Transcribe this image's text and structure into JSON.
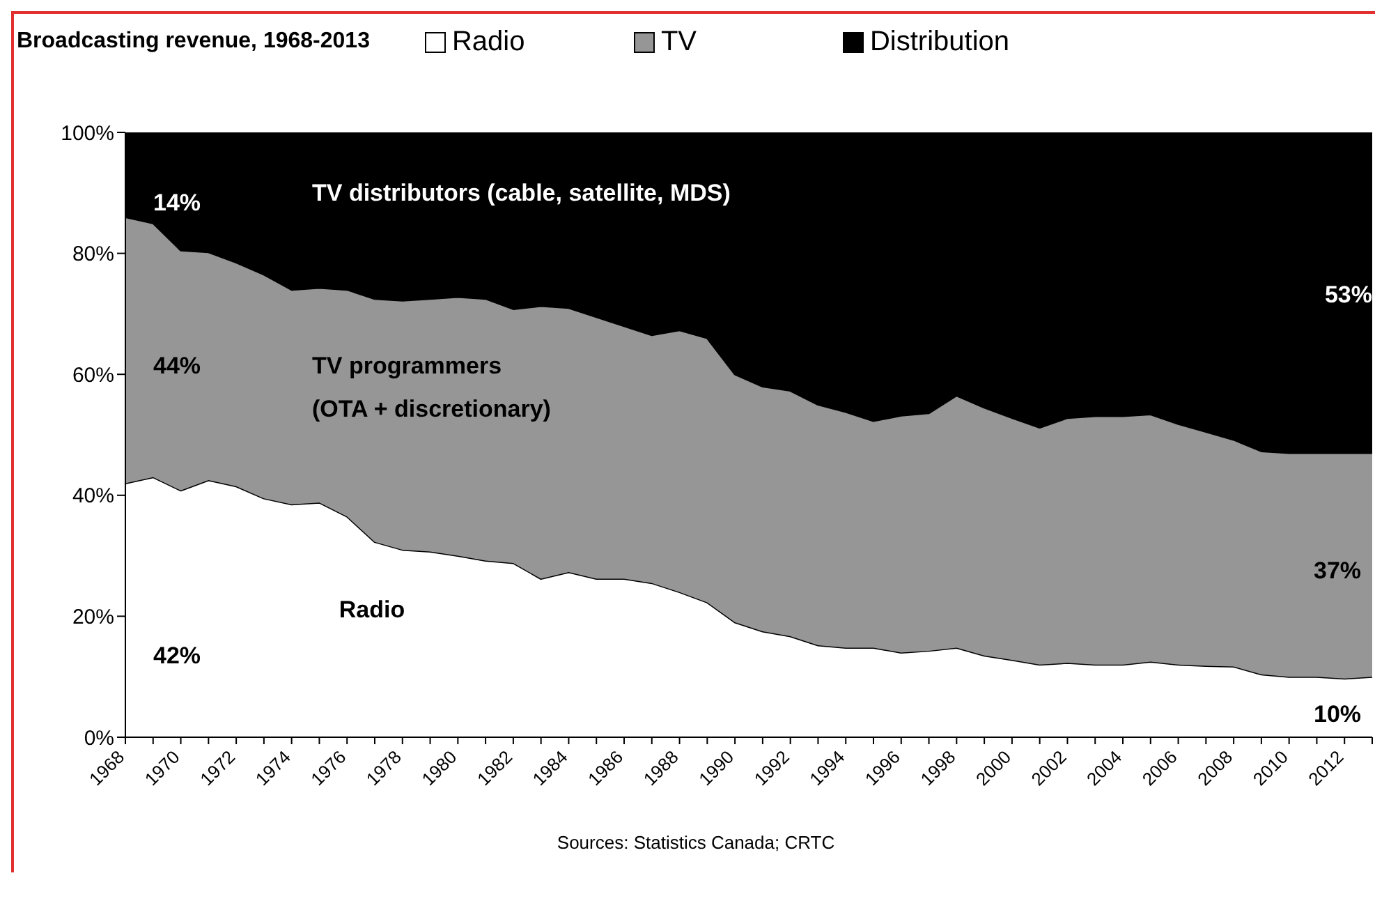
{
  "chart_data": {
    "type": "area",
    "stacked": true,
    "title": "Broadcasting revenue, 1968-2013",
    "x": [
      1968,
      1969,
      1970,
      1971,
      1972,
      1973,
      1974,
      1975,
      1976,
      1977,
      1978,
      1979,
      1980,
      1981,
      1982,
      1983,
      1984,
      1985,
      1986,
      1987,
      1988,
      1989,
      1990,
      1991,
      1992,
      1993,
      1994,
      1995,
      1996,
      1997,
      1998,
      1999,
      2000,
      2001,
      2002,
      2003,
      2004,
      2005,
      2006,
      2007,
      2008,
      2009,
      2010,
      2011,
      2012,
      2013
    ],
    "series": [
      {
        "name": "Radio",
        "color": "#ffffff",
        "values": [
          42,
          43,
          40.8,
          42.5,
          41.5,
          39.5,
          38.5,
          38.8,
          36.5,
          32.3,
          31,
          30.7,
          30,
          29.2,
          28.8,
          26.2,
          27.3,
          26.2,
          26.2,
          25.5,
          24,
          22.3,
          19,
          17.5,
          16.7,
          15.2,
          14.8,
          14.8,
          14,
          14.3,
          14.8,
          13.5,
          12.8,
          12,
          12.3,
          12,
          12,
          12.5,
          12,
          11.8,
          11.7,
          10.4,
          10,
          10,
          9.7,
          10
        ]
      },
      {
        "name": "TV",
        "color": "#969696",
        "values": [
          44,
          42,
          39.7,
          37.7,
          37,
          37,
          35.5,
          35.5,
          37.5,
          40.2,
          41.2,
          41.8,
          42.8,
          43.3,
          42,
          45.1,
          43.7,
          43.3,
          41.8,
          41,
          43.3,
          43.7,
          41,
          40.5,
          40.6,
          39.8,
          39,
          37.5,
          39.2,
          39.3,
          41.7,
          41,
          40,
          39.2,
          40.5,
          41.1,
          41.1,
          40.9,
          39.8,
          38.7,
          37.5,
          36.9,
          37,
          37,
          37.3,
          37
        ]
      },
      {
        "name": "Distribution",
        "color": "#000000",
        "values": [
          14,
          15,
          19.5,
          19.8,
          21.5,
          23.5,
          26,
          25.7,
          26,
          27.5,
          27.8,
          27.5,
          27.2,
          27.5,
          29.2,
          28.7,
          29,
          30.5,
          32,
          33.5,
          32.7,
          34,
          40,
          42,
          42.7,
          45,
          46.2,
          47.7,
          46.8,
          46.4,
          43.5,
          45.5,
          47.2,
          48.8,
          47.2,
          46.9,
          46.9,
          46.6,
          48.2,
          49.5,
          50.8,
          52.7,
          53,
          53,
          53,
          53
        ]
      }
    ],
    "xlim": [
      1968,
      2013
    ],
    "xticks": [
      1968,
      {
        "value": 1969,
        "label": null
      },
      1970,
      {
        "value": 1971,
        "label": null
      },
      1972,
      {
        "value": 1973,
        "label": null
      },
      1974,
      {
        "value": 1975,
        "label": null
      },
      1976,
      {
        "value": 1977,
        "label": null
      },
      1978,
      {
        "value": 1979,
        "label": null
      },
      1980,
      {
        "value": 1981,
        "label": null
      },
      1982,
      {
        "value": 1983,
        "label": null
      },
      1984,
      {
        "value": 1985,
        "label": null
      },
      1986,
      {
        "value": 1987,
        "label": null
      },
      1988,
      {
        "value": 1989,
        "label": null
      },
      1990,
      {
        "value": 1991,
        "label": null
      },
      1992,
      {
        "value": 1993,
        "label": null
      },
      1994,
      {
        "value": 1995,
        "label": null
      },
      1996,
      {
        "value": 1997,
        "label": null
      },
      1998,
      {
        "value": 1999,
        "label": null
      },
      2000,
      {
        "value": 2001,
        "label": null
      },
      2002,
      {
        "value": 2003,
        "label": null
      },
      2004,
      {
        "value": 2005,
        "label": null
      },
      2006,
      {
        "value": 2007,
        "label": null
      },
      2008,
      {
        "value": 2009,
        "label": null
      },
      2010,
      {
        "value": 2011,
        "label": null
      },
      2012,
      {
        "value": 2013,
        "label": null
      }
    ],
    "ylim": [
      0,
      100
    ],
    "yticks": [
      {
        "value": 0,
        "label": "0%"
      },
      {
        "value": 20,
        "label": "20%"
      },
      {
        "value": 40,
        "label": "40%"
      },
      {
        "value": 60,
        "label": "60%"
      },
      {
        "value": 80,
        "label": "80%"
      },
      {
        "value": 100,
        "label": "100%"
      }
    ],
    "legend": "top",
    "grid": false,
    "annotations": [
      "14%",
      "44%",
      "42%",
      "TV distributors (cable, satellite, MDS)",
      "TV programmers\n(OTA + discretionary)",
      "Radio",
      "53%",
      "37%",
      "10%",
      "Sources:  Statistics Canada; CRTC"
    ]
  }
}
